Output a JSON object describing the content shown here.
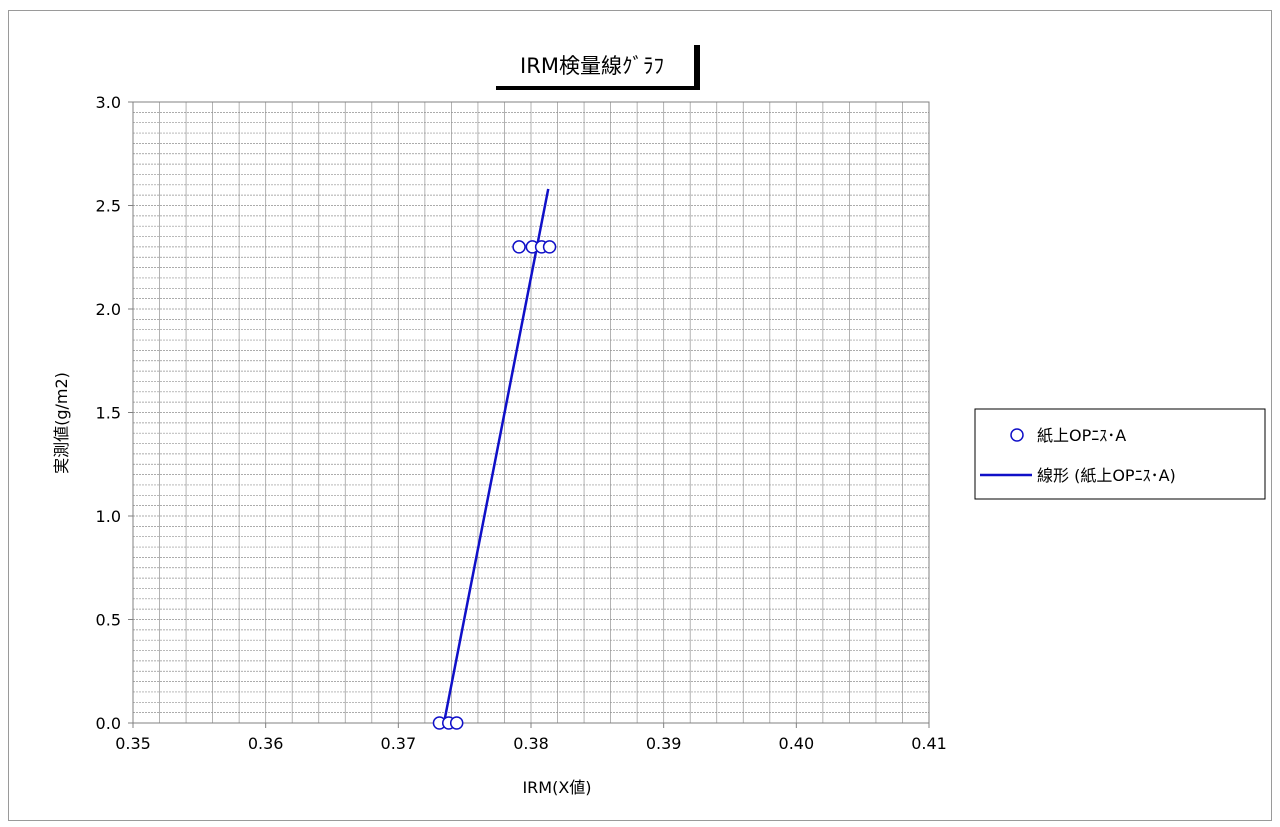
{
  "chart_data": {
    "type": "scatter",
    "title": "IRM検量線ｸﾞﾗﾌ",
    "xlabel": "IRM(X値)",
    "ylabel": "実測値(g/m2)",
    "xlim": [
      0.35,
      0.41
    ],
    "ylim": [
      0.0,
      3.0
    ],
    "x_ticks": [
      "0.35",
      "0.36",
      "0.37",
      "0.38",
      "0.39",
      "0.40",
      "0.41"
    ],
    "y_ticks": [
      "0.0",
      "0.5",
      "1.0",
      "1.5",
      "2.0",
      "2.5",
      "3.0"
    ],
    "grid": true,
    "legend_position": "right",
    "series": [
      {
        "name": "紙上OPﾆｽ･A",
        "marker": "open-circle",
        "color": "#1010c8",
        "points": [
          {
            "x": 0.3731,
            "y": 0.0
          },
          {
            "x": 0.3738,
            "y": 0.0
          },
          {
            "x": 0.3744,
            "y": 0.0
          },
          {
            "x": 0.3791,
            "y": 2.3
          },
          {
            "x": 0.3801,
            "y": 2.3
          },
          {
            "x": 0.3808,
            "y": 2.3
          },
          {
            "x": 0.3814,
            "y": 2.3
          }
        ]
      },
      {
        "name": "線形 (紙上OPﾆｽ･A)",
        "marker": "line",
        "color": "#1010c8",
        "points": [
          {
            "x": 0.3735,
            "y": 0.02
          },
          {
            "x": 0.3813,
            "y": 2.58
          }
        ]
      }
    ]
  }
}
